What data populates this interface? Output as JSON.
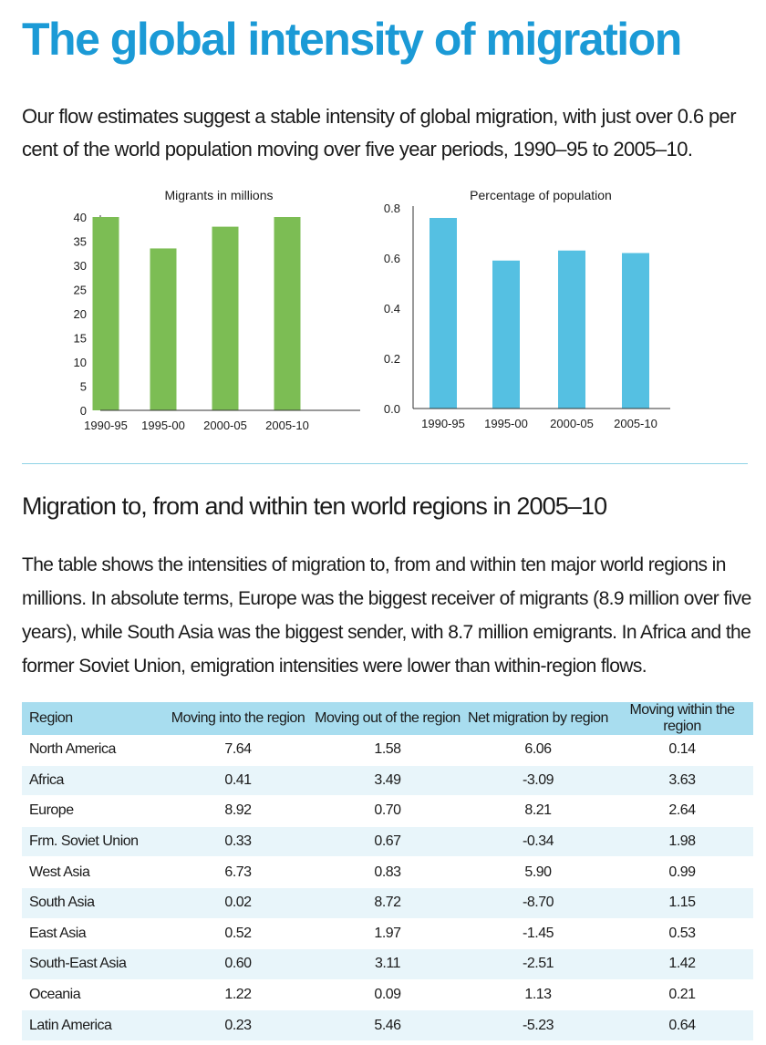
{
  "title": "The global intensity of migration",
  "intro": "Our flow estimates suggest a stable intensity of global migration, with just over 0.6 per cent of the world population moving over five year periods, 1990–95 to 2005–10.",
  "chart_data": [
    {
      "type": "bar",
      "title": "Migrants in millions",
      "categories": [
        "1990-95",
        "1995-00",
        "2000-05",
        "2005-10"
      ],
      "values": [
        40.0,
        33.5,
        38.0,
        40.0
      ],
      "yticks": [
        "0",
        "5",
        "10",
        "15",
        "20",
        "25",
        "30",
        "35",
        "40"
      ],
      "ylim": [
        0,
        40
      ],
      "color": "#7cbd54",
      "grid": false
    },
    {
      "type": "bar",
      "title": "Percentage of  population",
      "categories": [
        "1990-95",
        "1995-00",
        "2000-05",
        "2005-10"
      ],
      "values": [
        0.76,
        0.59,
        0.63,
        0.62
      ],
      "yticks": [
        "0.0",
        "0.2",
        "0.4",
        "0.6",
        "0.8"
      ],
      "ylim": [
        0,
        0.8
      ],
      "color": "#55c0e2",
      "grid": false
    }
  ],
  "section_title": "Migration to, from and within ten world regions in 2005–10",
  "section_text": "The table shows the intensities of migration to, from and within ten major world regions in millions. In absolute terms, Europe was the biggest receiver of migrants (8.9 million over five years), while South Asia was the biggest sender, with 8.7 million emigrants. In Africa and the former Soviet Union, emigration intensities were lower than within-region flows.",
  "table": {
    "headers": [
      "Region",
      "Moving into the region",
      "Moving out of the region",
      "Net migration by region",
      "Moving within the region"
    ],
    "rows": [
      [
        "North America",
        "7.64",
        "1.58",
        "6.06",
        "0.14"
      ],
      [
        "Africa",
        "0.41",
        "3.49",
        "-3.09",
        "3.63"
      ],
      [
        "Europe",
        "8.92",
        "0.70",
        "8.21",
        "2.64"
      ],
      [
        "Frm. Soviet Union",
        "0.33",
        "0.67",
        "-0.34",
        "1.98"
      ],
      [
        "West Asia",
        "6.73",
        "0.83",
        "5.90",
        "0.99"
      ],
      [
        "South Asia",
        "0.02",
        "8.72",
        "-8.70",
        "1.15"
      ],
      [
        "East Asia",
        "0.52",
        "1.97",
        "-1.45",
        "0.53"
      ],
      [
        "South-East Asia",
        "0.60",
        "3.11",
        "-2.51",
        "1.42"
      ],
      [
        "Oceania",
        "1.22",
        "0.09",
        "1.13",
        "0.21"
      ],
      [
        "Latin America",
        "0.23",
        "5.46",
        "-5.23",
        "0.64"
      ]
    ]
  }
}
